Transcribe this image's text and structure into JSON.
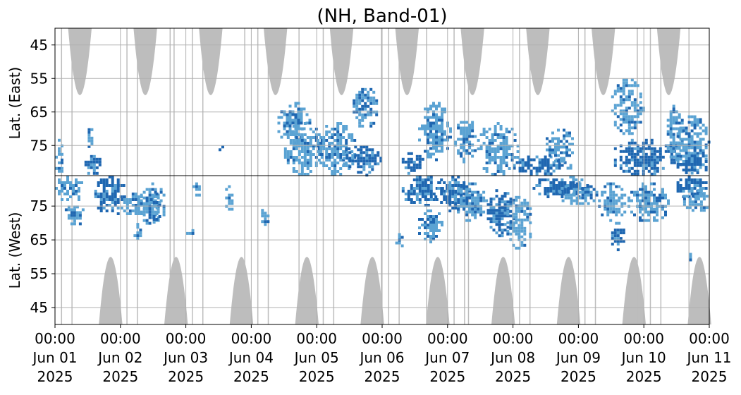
{
  "chart_data": {
    "type": "heatmap",
    "title": "(NH, Band-01)",
    "ylabel_top": "Lat. (East)",
    "ylabel_bottom": "Lat. (West)",
    "top_yticks": [
      45,
      55,
      65,
      75
    ],
    "bottom_yticks": [
      75,
      65,
      55,
      45
    ],
    "ylim": [
      40,
      84
    ],
    "xlim_days": [
      0,
      10
    ],
    "xticks": [
      {
        "time": "00:00",
        "date": "Jun 01",
        "year": "2025"
      },
      {
        "time": "00:00",
        "date": "Jun 02",
        "year": "2025"
      },
      {
        "time": "00:00",
        "date": "Jun 03",
        "year": "2025"
      },
      {
        "time": "00:00",
        "date": "Jun 04",
        "year": "2025"
      },
      {
        "time": "00:00",
        "date": "Jun 05",
        "year": "2025"
      },
      {
        "time": "00:00",
        "date": "Jun 06",
        "year": "2025"
      },
      {
        "time": "00:00",
        "date": "Jun 07",
        "year": "2025"
      },
      {
        "time": "00:00",
        "date": "Jun 08",
        "year": "2025"
      },
      {
        "time": "00:00",
        "date": "Jun 09",
        "year": "2025"
      },
      {
        "time": "00:00",
        "date": "Jun 10",
        "year": "2025"
      },
      {
        "time": "00:00",
        "date": "Jun 11",
        "year": "2025"
      }
    ],
    "grid": true,
    "colors": {
      "gray": "#bdbdbd",
      "dark_blue": "#1f67b1",
      "light_blue": "#5ba3d3",
      "grid": "#b0b0b0"
    },
    "gray_regions": {
      "top": [
        {
          "center_day": 0.38,
          "half_width_day": 0.18,
          "min_lat": 60
        },
        {
          "center_day": 1.38,
          "half_width_day": 0.18,
          "min_lat": 60
        },
        {
          "center_day": 2.38,
          "half_width_day": 0.18,
          "min_lat": 60
        },
        {
          "center_day": 3.37,
          "half_width_day": 0.18,
          "min_lat": 60
        },
        {
          "center_day": 4.38,
          "half_width_day": 0.18,
          "min_lat": 60
        },
        {
          "center_day": 5.38,
          "half_width_day": 0.18,
          "min_lat": 60
        },
        {
          "center_day": 6.38,
          "half_width_day": 0.18,
          "min_lat": 60
        },
        {
          "center_day": 7.38,
          "half_width_day": 0.18,
          "min_lat": 60
        },
        {
          "center_day": 8.38,
          "half_width_day": 0.18,
          "min_lat": 60
        },
        {
          "center_day": 9.38,
          "half_width_day": 0.18,
          "min_lat": 60
        }
      ],
      "bottom": [
        {
          "center_day": 0.85,
          "half_width_day": 0.18,
          "min_lat": 60
        },
        {
          "center_day": 1.85,
          "half_width_day": 0.18,
          "min_lat": 60
        },
        {
          "center_day": 2.85,
          "half_width_day": 0.18,
          "min_lat": 60
        },
        {
          "center_day": 3.85,
          "half_width_day": 0.18,
          "min_lat": 60
        },
        {
          "center_day": 4.85,
          "half_width_day": 0.18,
          "min_lat": 60
        },
        {
          "center_day": 5.85,
          "half_width_day": 0.18,
          "min_lat": 60
        },
        {
          "center_day": 6.85,
          "half_width_day": 0.18,
          "min_lat": 60
        },
        {
          "center_day": 7.85,
          "half_width_day": 0.18,
          "min_lat": 60
        },
        {
          "center_day": 8.85,
          "half_width_day": 0.18,
          "min_lat": 60
        },
        {
          "center_day": 9.85,
          "half_width_day": 0.18,
          "min_lat": 60
        }
      ]
    },
    "gray_vertical_lines_day": [
      0.1,
      0.26,
      1.1,
      1.26,
      1.76,
      1.82,
      2.1,
      2.26,
      2.9,
      3.1,
      3.26,
      3.73,
      4.1,
      4.26,
      4.99,
      5.1,
      5.26,
      5.68,
      6.1,
      6.26,
      6.32,
      7.1,
      7.26,
      8.1,
      8.26,
      8.9,
      9.1,
      9.26,
      9.69
    ],
    "blue_clusters": [
      {
        "side": "top",
        "day0": 0.0,
        "day1": 0.15,
        "lat0": 73,
        "lat1": 84,
        "strength": "light"
      },
      {
        "side": "top",
        "day0": 0.45,
        "day1": 0.72,
        "lat0": 77,
        "lat1": 84,
        "strength": "dark"
      },
      {
        "side": "top",
        "day0": 0.5,
        "day1": 0.58,
        "lat0": 69,
        "lat1": 77,
        "strength": "light"
      },
      {
        "side": "top",
        "day0": 2.5,
        "day1": 2.58,
        "lat0": 75,
        "lat1": 77,
        "strength": "light"
      },
      {
        "side": "top",
        "day0": 3.4,
        "day1": 3.9,
        "lat0": 62,
        "lat1": 75,
        "strength": "light"
      },
      {
        "side": "top",
        "day0": 3.5,
        "day1": 4.1,
        "lat0": 68,
        "lat1": 84,
        "strength": "light"
      },
      {
        "side": "top",
        "day0": 4.0,
        "day1": 4.6,
        "lat0": 68,
        "lat1": 84,
        "strength": "light"
      },
      {
        "side": "top",
        "day0": 4.4,
        "day1": 5.0,
        "lat0": 75,
        "lat1": 84,
        "strength": "dark"
      },
      {
        "side": "top",
        "day0": 4.55,
        "day1": 4.95,
        "lat0": 57,
        "lat1": 70,
        "strength": "light"
      },
      {
        "side": "top",
        "day0": 5.3,
        "day1": 5.65,
        "lat0": 77,
        "lat1": 84,
        "strength": "dark"
      },
      {
        "side": "top",
        "day0": 5.55,
        "day1": 6.05,
        "lat0": 62,
        "lat1": 80,
        "strength": "light"
      },
      {
        "side": "top",
        "day0": 6.1,
        "day1": 6.45,
        "lat0": 66,
        "lat1": 80,
        "strength": "light"
      },
      {
        "side": "top",
        "day0": 6.45,
        "day1": 7.1,
        "lat0": 68,
        "lat1": 84,
        "strength": "light"
      },
      {
        "side": "top",
        "day0": 7.0,
        "day1": 7.9,
        "lat0": 78,
        "lat1": 84,
        "strength": "dark"
      },
      {
        "side": "top",
        "day0": 7.5,
        "day1": 7.95,
        "lat0": 70,
        "lat1": 80,
        "strength": "light"
      },
      {
        "side": "top",
        "day0": 8.5,
        "day1": 9.0,
        "lat0": 55,
        "lat1": 72,
        "strength": "light"
      },
      {
        "side": "top",
        "day0": 8.5,
        "day1": 9.5,
        "lat0": 73,
        "lat1": 84,
        "strength": "dark"
      },
      {
        "side": "top",
        "day0": 9.35,
        "day1": 9.6,
        "lat0": 62,
        "lat1": 80,
        "strength": "light"
      },
      {
        "side": "top",
        "day0": 9.5,
        "day1": 10.0,
        "lat0": 66,
        "lat1": 84,
        "strength": "light"
      },
      {
        "side": "top",
        "day0": 9.5,
        "day1": 10.0,
        "lat0": 76,
        "lat1": 84,
        "strength": "dark"
      },
      {
        "side": "bottom",
        "day0": 0.0,
        "day1": 0.45,
        "lat0": 76,
        "lat1": 84,
        "strength": "light"
      },
      {
        "side": "bottom",
        "day0": 0.15,
        "day1": 0.45,
        "lat0": 69,
        "lat1": 76,
        "strength": "light"
      },
      {
        "side": "bottom",
        "day0": 0.6,
        "day1": 1.1,
        "lat0": 72,
        "lat1": 84,
        "strength": "dark"
      },
      {
        "side": "bottom",
        "day0": 1.0,
        "day1": 1.45,
        "lat0": 72,
        "lat1": 79,
        "strength": "light"
      },
      {
        "side": "bottom",
        "day0": 1.2,
        "day1": 1.35,
        "lat0": 64,
        "lat1": 70,
        "strength": "light"
      },
      {
        "side": "bottom",
        "day0": 1.3,
        "day1": 1.7,
        "lat0": 69,
        "lat1": 82,
        "strength": "light"
      },
      {
        "side": "bottom",
        "day0": 1.45,
        "day1": 1.62,
        "lat0": 70,
        "lat1": 79,
        "strength": "dark"
      },
      {
        "side": "bottom",
        "day0": 2.0,
        "day1": 2.15,
        "lat0": 66,
        "lat1": 69,
        "strength": "light"
      },
      {
        "side": "bottom",
        "day0": 2.1,
        "day1": 2.25,
        "lat0": 78,
        "lat1": 82,
        "strength": "light"
      },
      {
        "side": "bottom",
        "day0": 2.6,
        "day1": 2.75,
        "lat0": 73,
        "lat1": 82,
        "strength": "light"
      },
      {
        "side": "bottom",
        "day0": 3.15,
        "day1": 3.3,
        "lat0": 68,
        "lat1": 75,
        "strength": "light"
      },
      {
        "side": "bottom",
        "day0": 5.2,
        "day1": 5.35,
        "lat0": 63,
        "lat1": 67,
        "strength": "light"
      },
      {
        "side": "bottom",
        "day0": 5.3,
        "day1": 5.95,
        "lat0": 75,
        "lat1": 84,
        "strength": "dark"
      },
      {
        "side": "bottom",
        "day0": 5.55,
        "day1": 5.95,
        "lat0": 64,
        "lat1": 74,
        "strength": "light"
      },
      {
        "side": "bottom",
        "day0": 5.8,
        "day1": 6.35,
        "lat0": 73,
        "lat1": 84,
        "strength": "dark"
      },
      {
        "side": "bottom",
        "day0": 6.1,
        "day1": 6.6,
        "lat0": 70,
        "lat1": 82,
        "strength": "light"
      },
      {
        "side": "bottom",
        "day0": 6.6,
        "day1": 7.05,
        "lat0": 66,
        "lat1": 80,
        "strength": "dark"
      },
      {
        "side": "bottom",
        "day0": 6.9,
        "day1": 7.3,
        "lat0": 62,
        "lat1": 78,
        "strength": "light"
      },
      {
        "side": "bottom",
        "day0": 7.3,
        "day1": 8.2,
        "lat0": 77,
        "lat1": 84,
        "strength": "dark"
      },
      {
        "side": "bottom",
        "day0": 7.7,
        "day1": 8.3,
        "lat0": 75,
        "lat1": 82,
        "strength": "light"
      },
      {
        "side": "bottom",
        "day0": 8.3,
        "day1": 8.75,
        "lat0": 69,
        "lat1": 82,
        "strength": "light"
      },
      {
        "side": "bottom",
        "day0": 8.5,
        "day1": 8.72,
        "lat0": 62,
        "lat1": 70,
        "strength": "dark"
      },
      {
        "side": "bottom",
        "day0": 8.75,
        "day1": 9.4,
        "lat0": 70,
        "lat1": 82,
        "strength": "light"
      },
      {
        "side": "bottom",
        "day0": 9.5,
        "day1": 10.0,
        "lat0": 77,
        "lat1": 84,
        "strength": "dark"
      },
      {
        "side": "bottom",
        "day0": 9.6,
        "day1": 10.0,
        "lat0": 73,
        "lat1": 80,
        "strength": "light"
      },
      {
        "side": "bottom",
        "day0": 9.65,
        "day1": 9.75,
        "lat0": 59,
        "lat1": 62,
        "strength": "light"
      }
    ]
  }
}
